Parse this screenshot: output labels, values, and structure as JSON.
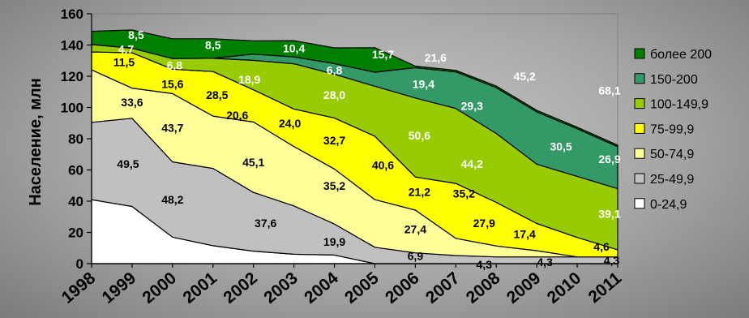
{
  "chart_data": {
    "type": "area",
    "stacked": true,
    "ylabel": "Население, млн",
    "xlabel": "",
    "ylim": [
      0,
      160
    ],
    "yticks": [
      0,
      20,
      40,
      60,
      80,
      100,
      120,
      140,
      160
    ],
    "categories": [
      "1998",
      "1999",
      "2000",
      "2001",
      "2002",
      "2003",
      "2004",
      "2005",
      "2006",
      "2007",
      "2008",
      "2009",
      "2010",
      "2011"
    ],
    "legend_position": "right",
    "series": [
      {
        "name": "0-24,9",
        "color": "#ffffff",
        "values": [
          41,
          36.6,
          17,
          11.5,
          8,
          6,
          5.5,
          0,
          0,
          0,
          0,
          0,
          0,
          0
        ]
      },
      {
        "name": "25-49,9",
        "color": "#c0c0c0",
        "values": [
          49.5,
          56.5,
          48.2,
          49.5,
          37.6,
          31,
          19.9,
          10.5,
          6.9,
          5.2,
          4.3,
          4.3,
          4.3,
          4.3
        ]
      },
      {
        "name": "50-74,9",
        "color": "#ffff99",
        "values": [
          33.6,
          19.3,
          43.7,
          33.5,
          45.1,
          38,
          35.2,
          30.5,
          27.4,
          11,
          7,
          4,
          0,
          0
        ]
      },
      {
        "name": "75-99,9",
        "color": "#ffff00",
        "values": [
          11.5,
          22.6,
          15.6,
          28.5,
          20.6,
          24,
          32.7,
          40.6,
          21.2,
          35.2,
          27.9,
          17.4,
          12.5,
          4.6
        ]
      },
      {
        "name": "100-149,9",
        "color": "#99cc00",
        "values": [
          4.7,
          3,
          6.8,
          8.5,
          18.9,
          29,
          28,
          32,
          50.6,
          48,
          44.2,
          38,
          39.1,
          39.1
        ]
      },
      {
        "name": "150-200",
        "color": "#339966",
        "values": [
          0,
          0,
          0,
          0,
          4,
          4.4,
          6.8,
          9,
          19.4,
          23.4,
          29.3,
          33.5,
          30.5,
          26.9
        ]
      },
      {
        "name": "более 200",
        "color": "#008000",
        "values": [
          8.5,
          11.6,
          12.7,
          12.5,
          8.5,
          10.4,
          10.1,
          15.7,
          1,
          1,
          1,
          1,
          1,
          1
        ]
      }
    ],
    "labels": [
      {
        "text": "8,5",
        "at": [
          1.1,
          146.5
        ],
        "color": "#ffffff"
      },
      {
        "text": "4,7",
        "at": [
          0.85,
          137.5
        ],
        "color": "#ffffff"
      },
      {
        "text": "11,5",
        "at": [
          0.8,
          129
        ],
        "color": "#000000"
      },
      {
        "text": "33,6",
        "at": [
          1.0,
          103.5
        ],
        "color": "#000000"
      },
      {
        "text": "49,5",
        "at": [
          0.9,
          64
        ],
        "color": "#000000"
      },
      {
        "text": "8,5",
        "at": [
          3.0,
          140
        ],
        "color": "#ffffff"
      },
      {
        "text": "6,8",
        "at": [
          2.05,
          127
        ],
        "color": "#ffffff"
      },
      {
        "text": "15,6",
        "at": [
          2.0,
          115
        ],
        "color": "#000000"
      },
      {
        "text": "43,7",
        "at": [
          2.0,
          87
        ],
        "color": "#000000"
      },
      {
        "text": "48,2",
        "at": [
          2.0,
          41
        ],
        "color": "#000000"
      },
      {
        "text": "18,9",
        "at": [
          3.9,
          118
        ],
        "color": "#ffffff"
      },
      {
        "text": "28,5",
        "at": [
          3.1,
          108
        ],
        "color": "#000000"
      },
      {
        "text": "20,6",
        "at": [
          3.6,
          95
        ],
        "color": "#000000"
      },
      {
        "text": "45,1",
        "at": [
          4.0,
          65
        ],
        "color": "#000000"
      },
      {
        "text": "37,6",
        "at": [
          4.3,
          26
        ],
        "color": "#000000"
      },
      {
        "text": "10,4",
        "at": [
          5.0,
          138
        ],
        "color": "#ffffff"
      },
      {
        "text": "24,0",
        "at": [
          4.9,
          90
        ],
        "color": "#000000"
      },
      {
        "text": "6,8",
        "at": [
          6.0,
          124
        ],
        "color": "#ffffff"
      },
      {
        "text": "28,0",
        "at": [
          6.0,
          108
        ],
        "color": "#ffffff"
      },
      {
        "text": "32,7",
        "at": [
          6.0,
          79
        ],
        "color": "#000000"
      },
      {
        "text": "35,2",
        "at": [
          6.0,
          50
        ],
        "color": "#000000"
      },
      {
        "text": "19,9",
        "at": [
          6.0,
          14
        ],
        "color": "#000000"
      },
      {
        "text": "15,7",
        "at": [
          7.2,
          134
        ],
        "color": "#ffffff"
      },
      {
        "text": "40,6",
        "at": [
          7.2,
          63
        ],
        "color": "#000000"
      },
      {
        "text": "21,6",
        "at": [
          8.5,
          132
        ],
        "color": "#ffffff"
      },
      {
        "text": "19,4",
        "at": [
          8.2,
          115
        ],
        "color": "#ffffff"
      },
      {
        "text": "50,6",
        "at": [
          8.1,
          82
        ],
        "color": "#ffffff"
      },
      {
        "text": "21,2",
        "at": [
          8.1,
          46
        ],
        "color": "#000000"
      },
      {
        "text": "27,4",
        "at": [
          8.0,
          22
        ],
        "color": "#000000"
      },
      {
        "text": "6,9",
        "at": [
          8.0,
          5
        ],
        "color": "#000000"
      },
      {
        "text": "29,3",
        "at": [
          9.4,
          101
        ],
        "color": "#ffffff"
      },
      {
        "text": "44,2",
        "at": [
          9.4,
          64
        ],
        "color": "#ffffff"
      },
      {
        "text": "35,2",
        "at": [
          9.2,
          45
        ],
        "color": "#000000"
      },
      {
        "text": "27,9",
        "at": [
          9.7,
          26
        ],
        "color": "#000000"
      },
      {
        "text": "4,3",
        "at": [
          9.7,
          -0.5
        ],
        "color": "#000000"
      },
      {
        "text": "45,2",
        "at": [
          10.7,
          120
        ],
        "color": "#ffffff"
      },
      {
        "text": "17,4",
        "at": [
          10.7,
          19
        ],
        "color": "#000000"
      },
      {
        "text": "4,3",
        "at": [
          11.2,
          1
        ],
        "color": "#000000"
      },
      {
        "text": "30,5",
        "at": [
          11.6,
          75
        ],
        "color": "#ffffff"
      },
      {
        "text": "68,1",
        "at": [
          12.8,
          111
        ],
        "color": "#ffffff"
      },
      {
        "text": "26,9",
        "at": [
          12.8,
          67
        ],
        "color": "#ffffff"
      },
      {
        "text": "39,1",
        "at": [
          12.8,
          32
        ],
        "color": "#ffffff"
      },
      {
        "text": "4,6",
        "at": [
          12.6,
          11
        ],
        "color": "#000000"
      },
      {
        "text": "4,3",
        "at": [
          12.85,
          2
        ],
        "color": "#000000"
      }
    ]
  }
}
